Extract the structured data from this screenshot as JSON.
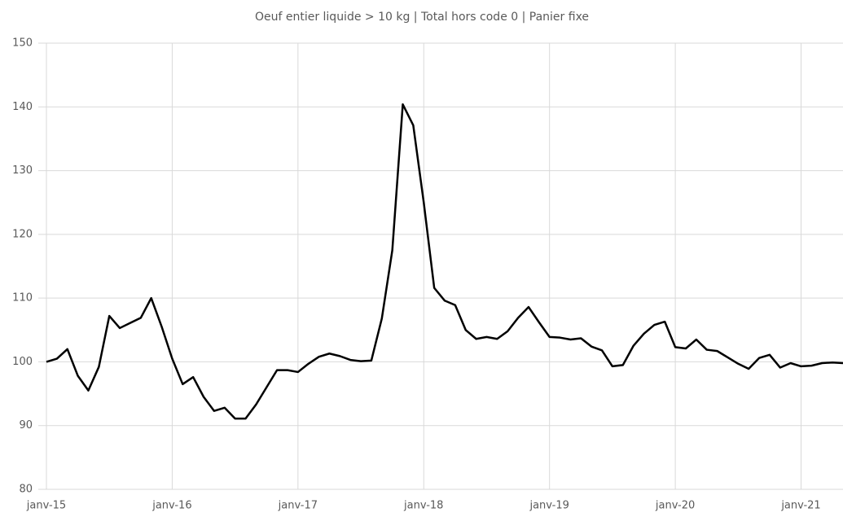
{
  "chart_data": {
    "type": "line",
    "title": "Oeuf entier liquide > 10 kg | Total hors code 0 | Panier fixe",
    "categories": [
      "janv-15",
      null,
      null,
      null,
      null,
      null,
      null,
      null,
      null,
      null,
      null,
      null,
      "janv-16",
      null,
      null,
      null,
      null,
      null,
      null,
      null,
      null,
      null,
      null,
      null,
      "janv-17",
      null,
      null,
      null,
      null,
      null,
      null,
      null,
      null,
      null,
      null,
      null,
      "janv-18",
      null,
      null,
      null,
      null,
      null,
      null,
      null,
      null,
      null,
      null,
      null,
      "janv-19",
      null,
      null,
      null,
      null,
      null,
      null,
      null,
      null,
      null,
      null,
      null,
      "janv-20",
      null,
      null,
      null,
      null,
      null,
      null,
      null,
      null,
      null,
      null,
      null,
      "janv-21",
      null,
      null,
      null,
      null
    ],
    "values": [
      100,
      100.5,
      102,
      97.8,
      95.5,
      99.2,
      107.2,
      105.3,
      106.1,
      106.9,
      110,
      105.5,
      100.5,
      96.5,
      97.6,
      94.5,
      92.3,
      92.8,
      91.1,
      91.1,
      93.3,
      96,
      98.7,
      98.7,
      98.4,
      99.7,
      100.8,
      101.3,
      100.9,
      100.3,
      100.1,
      100.2,
      106.8,
      117.5,
      140.4,
      137.1,
      125,
      111.6,
      109.6,
      108.9,
      105,
      103.6,
      103.9,
      103.6,
      104.8,
      106.9,
      108.6,
      106.2,
      103.9,
      103.8,
      103.5,
      103.7,
      102.4,
      101.8,
      99.3,
      99.5,
      102.5,
      104.4,
      105.8,
      106.3,
      102.3,
      102.1,
      103.5,
      101.9,
      101.7,
      100.7,
      99.7,
      98.9,
      100.6,
      101.1,
      99.1,
      99.8,
      99.3,
      99.4,
      99.8,
      99.9,
      99.8
    ],
    "color": "#000000",
    "ylim": [
      80,
      150
    ],
    "yticks": [
      80,
      90,
      100,
      110,
      120,
      130,
      140,
      150
    ],
    "grid": true
  }
}
